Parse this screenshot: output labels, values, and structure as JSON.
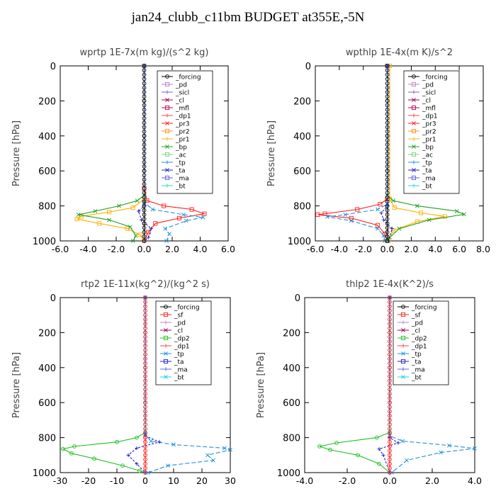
{
  "title": "jan24_clubb_c11bm  BUDGET at355E,-5N",
  "chart_data": [
    {
      "type": "line",
      "title": "wprtp  1E-7x(m kg)/(s^2 kg)",
      "ylabel": "Pressure [hPa]",
      "xlim": [
        -6,
        6
      ],
      "ylim": [
        1000,
        0
      ],
      "xticks": [
        "-6.0",
        "-4.0",
        "-2.0",
        "0.0",
        "2.0",
        "4.0",
        "6.0"
      ],
      "yticks": [
        "0",
        "200",
        "400",
        "600",
        "800",
        "1000"
      ],
      "legend": [
        "_forcing",
        "_pd",
        "_sicl",
        "_cl",
        "_mfl",
        "_dp1",
        "_pr3",
        "_pr2",
        "_pr1",
        "_bp",
        "_ac",
        "_tp",
        "_ta",
        "_ma",
        "_bt"
      ],
      "series": [
        {
          "name": "_forcing",
          "color": "#000000",
          "marker": "circle",
          "points": [
            [
              0,
              0
            ],
            [
              0,
              200
            ],
            [
              0,
              400
            ],
            [
              0,
              600
            ],
            [
              0,
              800
            ],
            [
              0,
              900
            ],
            [
              0,
              1000
            ]
          ]
        },
        {
          "name": "_pr3",
          "color": "#ff2020",
          "marker": "square",
          "points": [
            [
              0,
              0
            ],
            [
              0,
              700
            ],
            [
              0.2,
              770
            ],
            [
              1.4,
              800
            ],
            [
              3.4,
              820
            ],
            [
              4.3,
              845
            ],
            [
              2.5,
              870
            ],
            [
              0.8,
              900
            ],
            [
              0.3,
              950
            ],
            [
              0,
              1000
            ]
          ]
        },
        {
          "name": "_pr1",
          "color": "#ffb000",
          "marker": "square",
          "points": [
            [
              0,
              0
            ],
            [
              0,
              760
            ],
            [
              -0.8,
              810
            ],
            [
              -2.5,
              835
            ],
            [
              -4.5,
              860
            ],
            [
              -4.8,
              875
            ],
            [
              -3.2,
              900
            ],
            [
              -1.2,
              930
            ],
            [
              -0.3,
              965
            ],
            [
              0,
              1000
            ]
          ]
        },
        {
          "name": "_bp",
          "color": "#20a020",
          "marker": "x",
          "points": [
            [
              0,
              0
            ],
            [
              0,
              740
            ],
            [
              -0.5,
              770
            ],
            [
              -1.8,
              800
            ],
            [
              -3.5,
              830
            ],
            [
              -4.7,
              850
            ],
            [
              -2.5,
              880
            ],
            [
              -1.0,
              920
            ],
            [
              -0.6,
              970
            ],
            [
              -0.8,
              1000
            ]
          ]
        },
        {
          "name": "_tp",
          "color": "#2090e0",
          "marker": "x",
          "points": [
            [
              0,
              0
            ],
            [
              0,
              780
            ],
            [
              0.6,
              820
            ],
            [
              2.8,
              850
            ],
            [
              4.2,
              865
            ],
            [
              3.0,
              885
            ],
            [
              1.5,
              930
            ],
            [
              1.8,
              960
            ],
            [
              1.6,
              1000
            ]
          ]
        },
        {
          "name": "_ta",
          "color": "#2020c0",
          "marker": "plus",
          "points": [
            [
              0,
              0
            ],
            [
              0,
              800
            ],
            [
              -0.4,
              830
            ],
            [
              -0.2,
              880
            ],
            [
              0.5,
              930
            ],
            [
              0.3,
              980
            ],
            [
              0,
              1000
            ]
          ]
        }
      ]
    },
    {
      "type": "line",
      "title": "wpthlp  1E-4x(m K)/s^2",
      "ylabel": "Pressure [hPa]",
      "xlim": [
        -6,
        8
      ],
      "ylim": [
        1000,
        0
      ],
      "xticks": [
        "-6.0",
        "-4.0",
        "-2.0",
        "0.0",
        "2.0",
        "4.0",
        "6.0",
        "8.0"
      ],
      "yticks": [
        "0",
        "200",
        "400",
        "600",
        "800",
        "1000"
      ],
      "legend": [
        "_forcing",
        "_pd",
        "_sicl",
        "_cl",
        "_mfl",
        "_dp1",
        "_pr3",
        "_pr2",
        "_pr1",
        "_bp",
        "_ac",
        "_tp",
        "_ta",
        "_ma",
        "_bt"
      ],
      "series": [
        {
          "name": "_forcing",
          "color": "#000000",
          "marker": "circle",
          "points": [
            [
              0,
              0
            ],
            [
              0,
              200
            ],
            [
              0,
              400
            ],
            [
              0,
              600
            ],
            [
              0,
              800
            ],
            [
              0,
              1000
            ]
          ]
        },
        {
          "name": "_pr3",
          "color": "#ff2020",
          "marker": "square",
          "points": [
            [
              0,
              0
            ],
            [
              0,
              760
            ],
            [
              -0.6,
              790
            ],
            [
              -2.5,
              820
            ],
            [
              -5.2,
              845
            ],
            [
              -5.8,
              850
            ],
            [
              -3,
              870
            ],
            [
              -0.8,
              910
            ],
            [
              -0.2,
              960
            ],
            [
              0,
              1000
            ]
          ]
        },
        {
          "name": "_pr1",
          "color": "#ffb000",
          "marker": "square",
          "points": [
            [
              0.2,
              0
            ],
            [
              0.2,
              760
            ],
            [
              0.6,
              810
            ],
            [
              2.8,
              840
            ],
            [
              4.8,
              860
            ],
            [
              2.5,
              890
            ],
            [
              0.5,
              940
            ],
            [
              0.1,
              1000
            ]
          ]
        },
        {
          "name": "_bp",
          "color": "#20a020",
          "marker": "x",
          "points": [
            [
              0,
              0
            ],
            [
              0,
              740
            ],
            [
              0.5,
              770
            ],
            [
              2.5,
              800
            ],
            [
              5.8,
              830
            ],
            [
              6.4,
              848
            ],
            [
              3.5,
              880
            ],
            [
              1.0,
              930
            ],
            [
              0.2,
              980
            ],
            [
              0,
              1000
            ]
          ]
        },
        {
          "name": "_tp",
          "color": "#2090e0",
          "marker": "x",
          "points": [
            [
              0,
              0
            ],
            [
              0,
              790
            ],
            [
              -0.8,
              820
            ],
            [
              -3.5,
              850
            ],
            [
              -5.0,
              862
            ],
            [
              -3.0,
              885
            ],
            [
              -0.8,
              930
            ],
            [
              -0.3,
              970
            ],
            [
              -0.2,
              1000
            ]
          ]
        },
        {
          "name": "_ta",
          "color": "#2020c0",
          "marker": "plus",
          "points": [
            [
              0,
              0
            ],
            [
              0,
              800
            ],
            [
              -0.5,
              840
            ],
            [
              -0.3,
              880
            ],
            [
              0.4,
              930
            ],
            [
              0.1,
              1000
            ]
          ]
        }
      ]
    },
    {
      "type": "line",
      "title": "rtp2  1E-11x(kg^2)/(kg^2 s)",
      "ylabel": "Pressure [hPa]",
      "xlim": [
        -30,
        30
      ],
      "ylim": [
        1000,
        0
      ],
      "xticks": [
        "-30",
        "-20",
        "-10",
        "0",
        "10",
        "20",
        "30"
      ],
      "yticks": [
        "0",
        "200",
        "400",
        "600",
        "800",
        "1000"
      ],
      "legend": [
        "_forcing",
        "_sf",
        "_pd",
        "_cl",
        "_dp2",
        "_dp1",
        "_tp",
        "_ta",
        "_ma",
        "_bt"
      ],
      "series": [
        {
          "name": "_forcing",
          "color": "#ff2020",
          "marker": "circle",
          "points": [
            [
              0,
              0
            ],
            [
              0,
              200
            ],
            [
              0,
              400
            ],
            [
              0,
              600
            ],
            [
              0,
              800
            ],
            [
              0,
              1000
            ]
          ]
        },
        {
          "name": "_dp1",
          "color": "#20c020",
          "marker": "circle",
          "points": [
            [
              0,
              0
            ],
            [
              0,
              770
            ],
            [
              -3,
              800
            ],
            [
              -10,
              825
            ],
            [
              -25,
              850
            ],
            [
              -29,
              865
            ],
            [
              -26,
              890
            ],
            [
              -18,
              920
            ],
            [
              -8,
              960
            ],
            [
              -2,
              990
            ],
            [
              0,
              1000
            ]
          ]
        },
        {
          "name": "_tp",
          "color": "#2090e0",
          "marker": "x",
          "points": [
            [
              0,
              0
            ],
            [
              0,
              780
            ],
            [
              2,
              820
            ],
            [
              10,
              840
            ],
            [
              28,
              860
            ],
            [
              30,
              870
            ],
            [
              22,
              900
            ],
            [
              24,
              930
            ],
            [
              8,
              960
            ],
            [
              1,
              1000
            ]
          ]
        },
        {
          "name": "_ta",
          "color": "#2020c0",
          "marker": "plus",
          "points": [
            [
              0,
              0
            ],
            [
              0,
              790
            ],
            [
              5,
              825
            ],
            [
              -3,
              860
            ],
            [
              -6,
              900
            ],
            [
              -3,
              950
            ],
            [
              0,
              1000
            ]
          ]
        }
      ]
    },
    {
      "type": "line",
      "title": "thlp2  1E-4x(K^2)/s",
      "ylabel": "Pressure [hPa]",
      "xlim": [
        -4,
        4
      ],
      "ylim": [
        1000,
        0
      ],
      "xticks": [
        "-4.0",
        "-2.0",
        "0.0",
        "2.0",
        "4.0"
      ],
      "yticks": [
        "0",
        "200",
        "400",
        "600",
        "800",
        "1000"
      ],
      "legend": [
        "_forcing",
        "_sf",
        "_pd",
        "_cl",
        "_dp2",
        "_dp1",
        "_tp",
        "_ta",
        "_ma",
        "_bt"
      ],
      "series": [
        {
          "name": "_forcing",
          "color": "#ff2020",
          "marker": "circle",
          "points": [
            [
              0,
              0
            ],
            [
              0,
              200
            ],
            [
              0,
              400
            ],
            [
              0,
              600
            ],
            [
              0,
              800
            ],
            [
              0,
              1000
            ]
          ]
        },
        {
          "name": "_dp1",
          "color": "#20c020",
          "marker": "circle",
          "points": [
            [
              0,
              0
            ],
            [
              0,
              770
            ],
            [
              -0.6,
              800
            ],
            [
              -2.5,
              830
            ],
            [
              -3.3,
              850
            ],
            [
              -2.8,
              870
            ],
            [
              -1.5,
              900
            ],
            [
              -0.5,
              950
            ],
            [
              0,
              1000
            ]
          ]
        },
        {
          "name": "_tp",
          "color": "#2090e0",
          "marker": "x",
          "points": [
            [
              0,
              0
            ],
            [
              0,
              790
            ],
            [
              0.6,
              820
            ],
            [
              2.8,
              845
            ],
            [
              4.0,
              862
            ],
            [
              2.4,
              885
            ],
            [
              0.8,
              930
            ],
            [
              0.1,
              1000
            ]
          ]
        },
        {
          "name": "_ta",
          "color": "#2020c0",
          "marker": "plus",
          "points": [
            [
              0,
              0
            ],
            [
              0,
              800
            ],
            [
              0.4,
              830
            ],
            [
              -0.5,
              865
            ],
            [
              -0.3,
              900
            ],
            [
              0,
              1000
            ]
          ]
        }
      ]
    }
  ],
  "legend_colors": {
    "_forcing": "#000000",
    "_pd": "#c080c0",
    "_sicl": "#8060c0",
    "_cl": "#a00060",
    "_mfl": "#c00060",
    "_dp1": "#ff4040",
    "_pr3": "#ff2020",
    "_pr2": "#ff9020",
    "_pr1": "#ffb000",
    "_bp": "#20a020",
    "_ac": "#80d080",
    "_tp": "#2090e0",
    "_ta": "#2020c0",
    "_ma": "#6060e0",
    "_bt": "#20d0e0",
    "_sf": "#ff2020",
    "_dp2": "#20c020"
  }
}
